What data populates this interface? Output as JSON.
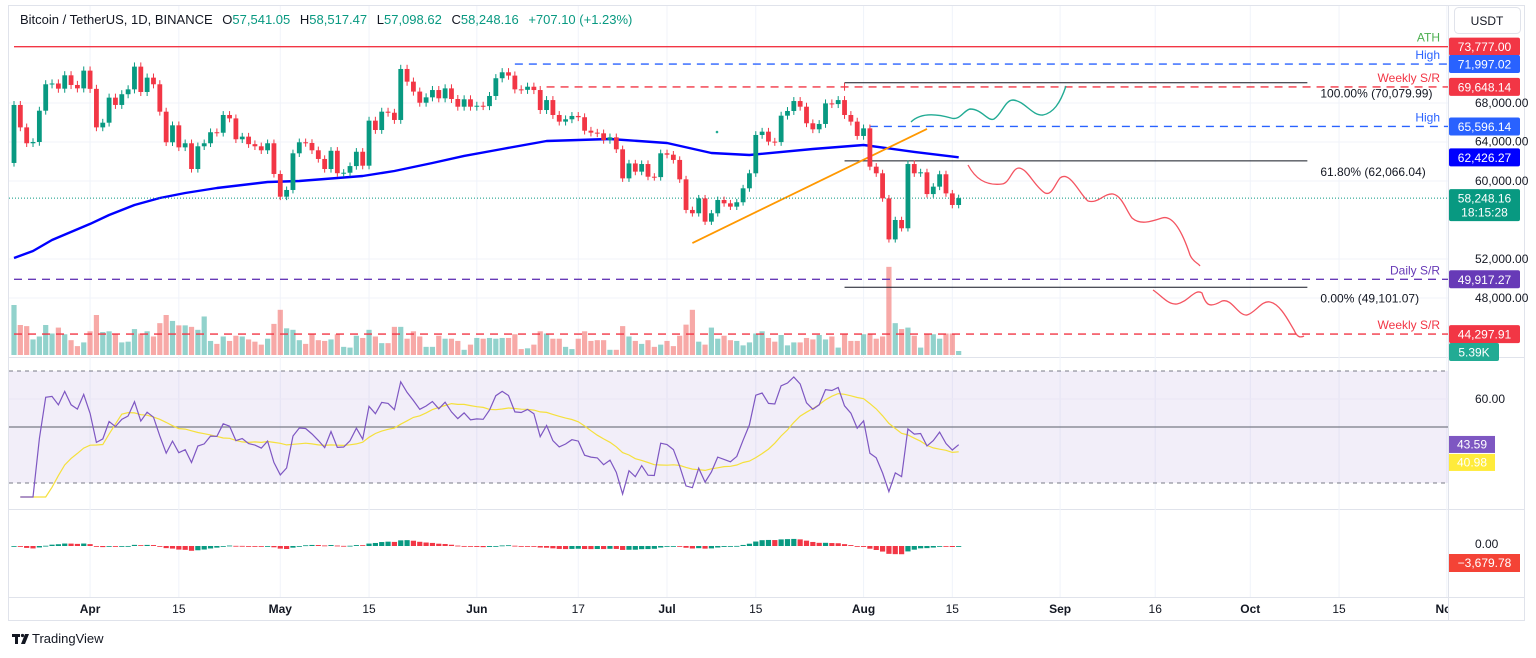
{
  "header": {
    "symbol": "Bitcoin / TetherUS, 1D, BINANCE",
    "o_label": "O",
    "o": "57,541.05",
    "h_label": "H",
    "h": "58,517.47",
    "l_label": "L",
    "l": "57,098.62",
    "c_label": "C",
    "c": "58,248.16",
    "change": "+707.10 (+1.23%)"
  },
  "currency": "USDT",
  "footer": {
    "brand": "TradingView"
  },
  "colors": {
    "up": "#089981",
    "down": "#f23645",
    "ma": "#0000ff",
    "trendline": "#ff9800",
    "rsi": "#7e57c2",
    "rsi_ma": "#f5e03c",
    "bullish_path": "#22ab94",
    "bearish_path": "#f23645"
  },
  "chart_data": {
    "type": "candlestick",
    "first_open": 61850,
    "candles": [
      [
        "03-20",
        67800,
        67.5
      ],
      [
        "03-21",
        65500,
        40.5
      ],
      [
        "03-22",
        63870,
        39
      ],
      [
        "03-23",
        64000,
        21
      ],
      [
        "03-24",
        67210,
        25
      ],
      [
        "03-25",
        69920,
        40.5
      ],
      [
        "03-26",
        70000,
        29
      ],
      [
        "03-27",
        69470,
        37
      ],
      [
        "03-28",
        70840,
        28
      ],
      [
        "03-29",
        69850,
        20
      ],
      [
        "03-30",
        69500,
        12
      ],
      [
        "03-31",
        71320,
        17
      ],
      [
        "04-01",
        69450,
        32
      ],
      [
        "04-02",
        65500,
        54
      ],
      [
        "04-03",
        65980,
        31
      ],
      [
        "04-04",
        68550,
        32
      ],
      [
        "04-05",
        67800,
        29
      ],
      [
        "04-06",
        68900,
        17
      ],
      [
        "04-07",
        69400,
        18
      ],
      [
        "04-08",
        71730,
        35
      ],
      [
        "04-09",
        69130,
        29
      ],
      [
        "04-10",
        70600,
        32
      ],
      [
        "04-11",
        69920,
        25
      ],
      [
        "04-12",
        67110,
        43
      ],
      [
        "04-13",
        63970,
        54
      ],
      [
        "04-14",
        65710,
        46
      ],
      [
        "04-15",
        63450,
        40
      ],
      [
        "04-16",
        63870,
        40
      ],
      [
        "04-17",
        61230,
        38
      ],
      [
        "04-18",
        63560,
        34
      ],
      [
        "04-19",
        63870,
        52
      ],
      [
        "04-20",
        65000,
        19
      ],
      [
        "04-21",
        64950,
        15
      ],
      [
        "04-22",
        66770,
        25
      ],
      [
        "04-23",
        66420,
        19
      ],
      [
        "04-24",
        64280,
        26
      ],
      [
        "04-25",
        64550,
        25
      ],
      [
        "04-26",
        63780,
        21
      ],
      [
        "04-27",
        63560,
        18
      ],
      [
        "04-28",
        63150,
        14
      ],
      [
        "04-29",
        63870,
        22
      ],
      [
        "04-30",
        60720,
        42
      ],
      [
        "05-01",
        58390,
        61
      ],
      [
        "05-02",
        59080,
        36
      ],
      [
        "05-03",
        62840,
        34
      ],
      [
        "05-04",
        63970,
        20
      ],
      [
        "05-05",
        63900,
        15
      ],
      [
        "05-06",
        63150,
        28
      ],
      [
        "05-07",
        62260,
        20
      ],
      [
        "05-08",
        61230,
        19
      ],
      [
        "05-09",
        63100,
        21
      ],
      [
        "05-10",
        60800,
        28
      ],
      [
        "05-11",
        60850,
        11
      ],
      [
        "05-12",
        61530,
        10
      ],
      [
        "05-13",
        63000,
        26
      ],
      [
        "05-14",
        61570,
        23
      ],
      [
        "05-15",
        66190,
        34
      ],
      [
        "05-16",
        65230,
        25
      ],
      [
        "05-17",
        67110,
        16
      ],
      [
        "05-18",
        67000,
        16
      ],
      [
        "05-19",
        66260,
        38
      ],
      [
        "05-20",
        71490,
        38
      ],
      [
        "05-21",
        70190,
        22
      ],
      [
        "05-22",
        69170,
        32
      ],
      [
        "05-23",
        68030,
        25
      ],
      [
        "05-24",
        68580,
        11
      ],
      [
        "05-25",
        69330,
        11
      ],
      [
        "05-26",
        68480,
        26
      ],
      [
        "05-27",
        69500,
        22
      ],
      [
        "05-28",
        68410,
        22
      ],
      [
        "05-29",
        67620,
        19
      ],
      [
        "05-30",
        68380,
        7
      ],
      [
        "05-31",
        67620,
        14
      ],
      [
        "06-01",
        67720,
        23
      ],
      [
        "06-02",
        67680,
        22
      ],
      [
        "06-03",
        68720,
        23
      ],
      [
        "06-04",
        70540,
        22
      ],
      [
        "06-05",
        71150,
        23
      ],
      [
        "06-06",
        70810,
        23
      ],
      [
        "06-07",
        69400,
        28
      ],
      [
        "06-08",
        69350,
        8
      ],
      [
        "06-09",
        69670,
        9
      ],
      [
        "06-10",
        69330,
        14
      ],
      [
        "06-11",
        67280,
        32
      ],
      [
        "06-12",
        68300,
        29
      ],
      [
        "06-13",
        66770,
        22
      ],
      [
        "06-14",
        66090,
        22
      ],
      [
        "06-15",
        66330,
        11
      ],
      [
        "06-16",
        66670,
        8
      ],
      [
        "06-17",
        66540,
        22
      ],
      [
        "06-18",
        65160,
        32
      ],
      [
        "06-19",
        64960,
        19
      ],
      [
        "06-20",
        64890,
        20
      ],
      [
        "06-21",
        64210,
        20
      ],
      [
        "06-22",
        64480,
        7
      ],
      [
        "06-23",
        63250,
        7
      ],
      [
        "06-24",
        60270,
        39
      ],
      [
        "06-25",
        61800,
        25
      ],
      [
        "06-26",
        60960,
        19
      ],
      [
        "06-27",
        61740,
        15
      ],
      [
        "06-28",
        60440,
        20
      ],
      [
        "06-29",
        60400,
        11
      ],
      [
        "06-30",
        62840,
        14
      ],
      [
        "07-01",
        62700,
        19
      ],
      [
        "07-02",
        62160,
        12
      ],
      [
        "07-03",
        60170,
        26
      ],
      [
        "07-04",
        57030,
        41
      ],
      [
        "07-05",
        56690,
        61
      ],
      [
        "07-06",
        58220,
        18
      ],
      [
        "07-07",
        55830,
        14
      ],
      [
        "07-08",
        56690,
        37
      ],
      [
        "07-09",
        58050,
        22
      ],
      [
        "07-10",
        57710,
        26
      ],
      [
        "07-11",
        57370,
        20
      ],
      [
        "07-12",
        57820,
        19
      ],
      [
        "07-13",
        59250,
        13
      ],
      [
        "07-14",
        60790,
        17
      ],
      [
        "07-15",
        64720,
        29
      ],
      [
        "07-16",
        65060,
        32
      ],
      [
        "07-17",
        64040,
        23
      ],
      [
        "07-18",
        63990,
        18
      ],
      [
        "07-19",
        66700,
        27
      ],
      [
        "07-20",
        67180,
        13
      ],
      [
        "07-21",
        68200,
        17
      ],
      [
        "07-22",
        67620,
        17
      ],
      [
        "07-23",
        65920,
        23
      ],
      [
        "07-24",
        65300,
        21
      ],
      [
        "07-25",
        65850,
        27
      ],
      [
        "07-26",
        67960,
        21
      ],
      [
        "07-27",
        67890,
        25
      ],
      [
        "07-28",
        68300,
        10
      ],
      [
        "07-29",
        66770,
        28
      ],
      [
        "07-30",
        66090,
        19
      ],
      [
        "07-31",
        64620,
        19
      ],
      [
        "08-01",
        65400,
        28
      ],
      [
        "08-02",
        61470,
        29
      ],
      [
        "08-03",
        60790,
        22
      ],
      [
        "08-04",
        58220,
        25
      ],
      [
        "08-05",
        54010,
        119
      ],
      [
        "08-06",
        56000,
        43
      ],
      [
        "08-07",
        55150,
        35
      ],
      [
        "08-08",
        61740,
        37
      ],
      [
        "08-09",
        60790,
        26
      ],
      [
        "08-10",
        60890,
        10
      ],
      [
        "08-11",
        58660,
        29
      ],
      [
        "08-12",
        59420,
        28
      ],
      [
        "08-13",
        60690,
        22
      ],
      [
        "08-14",
        58730,
        29
      ],
      [
        "08-15",
        57540,
        29
      ],
      [
        "08-16",
        58248.16,
        5.39
      ]
    ],
    "ma_line": [
      [
        "03-20",
        52100
      ],
      [
        "03-23",
        52820
      ],
      [
        "03-26",
        53950
      ],
      [
        "04-01",
        55600
      ],
      [
        "04-04",
        56510
      ],
      [
        "04-08",
        57540
      ],
      [
        "04-12",
        58260
      ],
      [
        "04-16",
        58770
      ],
      [
        "04-21",
        59280
      ],
      [
        "04-29",
        59900
      ],
      [
        "05-04",
        60000
      ],
      [
        "05-14",
        60510
      ],
      [
        "05-19",
        61030
      ],
      [
        "05-25",
        61850
      ],
      [
        "05-30",
        62570
      ],
      [
        "06-05",
        63280
      ],
      [
        "06-12",
        64100
      ],
      [
        "06-22",
        64310
      ],
      [
        "07-01",
        63900
      ],
      [
        "07-08",
        62870
      ],
      [
        "07-14",
        62670
      ],
      [
        "07-24",
        63280
      ],
      [
        "08-01",
        63690
      ],
      [
        "08-09",
        62980
      ],
      [
        "08-16",
        62426.27
      ]
    ],
    "price_axis": {
      "ticks": [
        [
          68000,
          "68,000.00"
        ],
        [
          64000,
          "64,000.00"
        ],
        [
          60000,
          "60,000.00"
        ],
        [
          52000,
          "52,000.00"
        ],
        [
          48000,
          "48,000.00"
        ]
      ]
    },
    "x_ticks": [
      {
        "label": "Apr",
        "date": "04-01",
        "month": true
      },
      {
        "label": "15",
        "date": "04-15"
      },
      {
        "label": "May",
        "date": "05-01",
        "month": true
      },
      {
        "label": "15",
        "date": "05-15"
      },
      {
        "label": "Jun",
        "date": "06-01",
        "month": true
      },
      {
        "label": "17",
        "date": "06-17"
      },
      {
        "label": "Jul",
        "date": "07-01",
        "month": true
      },
      {
        "label": "15",
        "date": "07-15"
      },
      {
        "label": "Aug",
        "date": "08-01",
        "month": true
      },
      {
        "label": "15",
        "date": "08-15"
      },
      {
        "label": "Sep",
        "date": "09-01",
        "month": true
      },
      {
        "label": "16",
        "date": "09-16"
      },
      {
        "label": "Oct",
        "date": "10-01",
        "month": true
      },
      {
        "label": "15",
        "date": "10-15"
      },
      {
        "label": "Nov",
        "date": "11-01",
        "month": true
      }
    ],
    "levels": [
      {
        "label": "ATH",
        "price": 73777,
        "tag": "73,777.00",
        "color": "#f23645",
        "label_color": "#4caf50",
        "style": "solid",
        "from": "03-20"
      },
      {
        "label": "High",
        "price": 71997.02,
        "tag": "71,997.02",
        "color": "#2962ff",
        "label_color": "#2962ff",
        "style": "dashed",
        "from": "06-07"
      },
      {
        "label": "Weekly S/R",
        "price": 69648.14,
        "tag": "69,648.14",
        "color": "#f23645",
        "label_color": "#f23645",
        "style": "dashed",
        "from": "06-12"
      },
      {
        "label": "High",
        "price": 65596.14,
        "tag": "65,596.14",
        "color": "#2962ff",
        "label_color": "#2962ff",
        "style": "dashed",
        "from": "08-02"
      },
      {
        "label": "Daily S/R",
        "price": 49917.27,
        "tag": "49,917.27",
        "color": "#673ab7",
        "label_color": "#673ab7",
        "style": "dashed",
        "from": "03-20"
      },
      {
        "label": "Weekly S/R",
        "price": 44297.91,
        "tag": "44,297.91",
        "color": "#f23645",
        "label_color": "#f23645",
        "style": "dashed",
        "from": "03-20"
      }
    ],
    "ma_tag": {
      "price": 62426.27,
      "tag": "62,426.27"
    },
    "fib": {
      "from": "07-29",
      "to": "10-10",
      "levels": [
        {
          "price": 70079.99,
          "label": "100.00% (70,079.99)"
        },
        {
          "price": 62066.04,
          "label": "61.80% (62,066.04)"
        },
        {
          "price": 49101.07,
          "label": "0.00% (49,101.07)"
        }
      ]
    },
    "trendline": {
      "from": [
        "07-05",
        53640
      ],
      "to": [
        "08-11",
        65340
      ]
    },
    "last_price": {
      "price": 58248.16,
      "tag": "58,248.16",
      "countdown": "18:15:28"
    },
    "volume_last": "5.39K",
    "rsi": {
      "upper": 70,
      "mid": 50,
      "lower": 30,
      "ticks": [
        [
          60,
          "60.00"
        ]
      ],
      "value": 43.59,
      "value_label": "43.59",
      "ma_value": 40.98,
      "ma_label": "40.98"
    },
    "macd": {
      "ticks": [
        [
          0,
          "0.00"
        ]
      ],
      "value_label": "−3,679.78"
    }
  }
}
